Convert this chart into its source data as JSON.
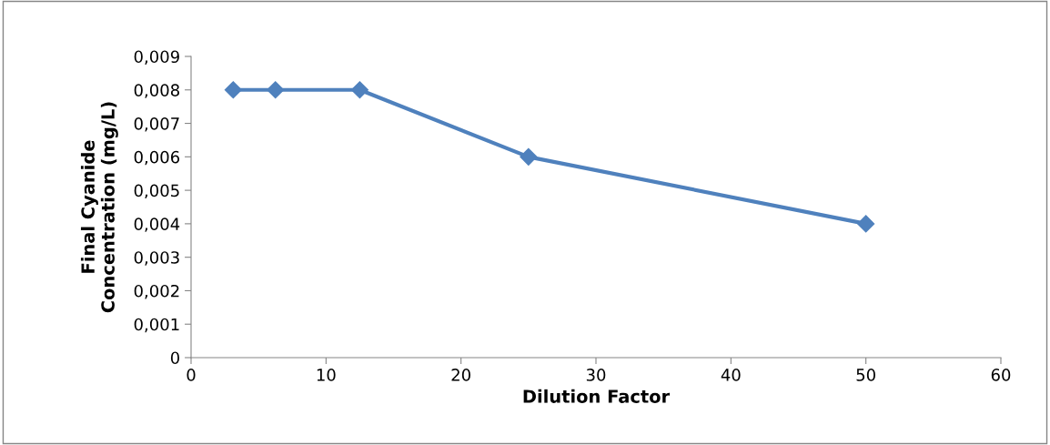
{
  "chart_data": {
    "type": "line",
    "xlabel": "Dilution Factor",
    "ylabel": "Final Cyanide\nConcentration (mg/L)",
    "x": [
      3.125,
      6.25,
      12.5,
      25,
      50
    ],
    "series": [
      {
        "color": "#4f81bd",
        "values": [
          0.008,
          0.008,
          0.008,
          0.006,
          0.004
        ]
      }
    ],
    "marker": "diamond",
    "line_style": "solid",
    "grid": false,
    "legend": false,
    "xlim": [
      0,
      60
    ],
    "xticks": [
      0,
      10,
      20,
      30,
      40,
      50,
      60
    ],
    "ylim": [
      0,
      0.009
    ],
    "yticks": [
      0,
      {
        "value": 0.001,
        "label": "0,001"
      },
      {
        "value": 0.002,
        "label": "0,002"
      },
      {
        "value": 0.003,
        "label": "0,003"
      },
      {
        "value": 0.004,
        "label": "0,004"
      },
      {
        "value": 0.005,
        "label": "0,005"
      },
      {
        "value": 0.006,
        "label": "0,006"
      },
      {
        "value": 0.007,
        "label": "0,007"
      },
      {
        "value": 0.008,
        "label": "0,008"
      },
      {
        "value": 0.009,
        "label": "0,009"
      }
    ]
  }
}
